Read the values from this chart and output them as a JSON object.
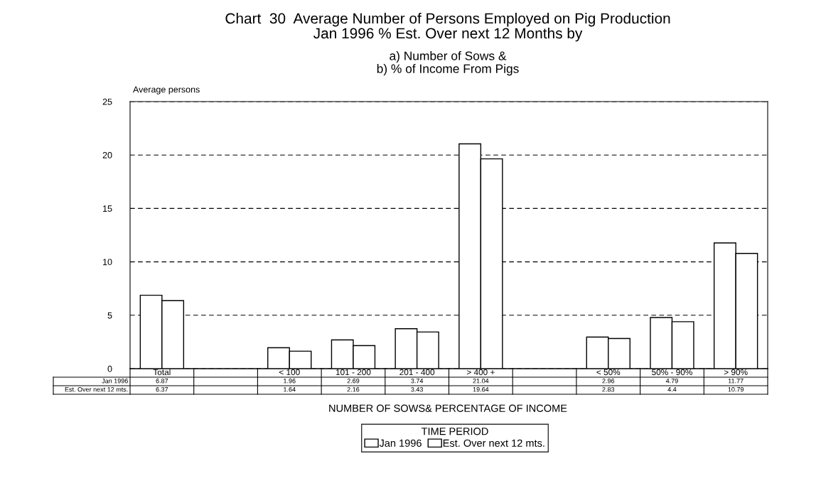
{
  "chart_data": {
    "type": "bar",
    "title": "Chart  30  Average Number of Persons Employed on Pig Production\nJan 1996 % Est. Over next 12 Months by",
    "subtitle": "a) Number of Sows &\nb) % of Income From Pigs",
    "ylabel": "Average persons",
    "xlabel": "NUMBER OF SOWS& PERCENTAGE OF INCOME",
    "legend_title": "TIME PERIOD",
    "categories": [
      "Total",
      null,
      "< 100",
      "101 - 200",
      "201 - 400",
      "> 400 +",
      null,
      "< 50%",
      "50% - 90%",
      "> 90%"
    ],
    "series": [
      {
        "name": "Jan 1996",
        "color": "#ffffff",
        "values": [
          6.87,
          null,
          1.96,
          2.69,
          3.74,
          21.04,
          null,
          2.96,
          4.79,
          11.77
        ]
      },
      {
        "name": "Est. Over next 12 mts.",
        "color": "#ffffff",
        "values": [
          6.37,
          null,
          1.64,
          2.16,
          3.43,
          19.64,
          null,
          2.83,
          4.4,
          10.79
        ]
      }
    ],
    "ylim": [
      0,
      25
    ],
    "yticks": [
      0,
      5,
      10,
      15,
      20,
      25
    ],
    "grid": "y",
    "legend": "bottom",
    "data_labels": true
  }
}
